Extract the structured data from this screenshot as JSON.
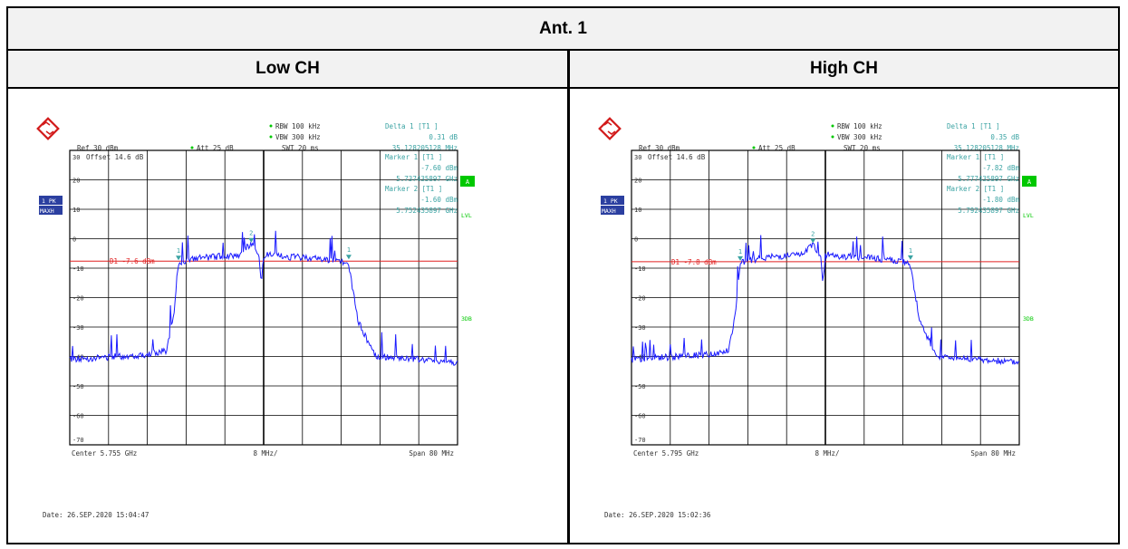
{
  "table": {
    "title": "Ant. 1",
    "columns": [
      "Low CH",
      "High CH"
    ]
  },
  "colors": {
    "trace": "#1a1aff",
    "grid": "#000000",
    "annotation": "#3aa3a3",
    "display_line": "#e02020",
    "badge": "#2b3fa0",
    "green": "#00c800"
  },
  "plots": [
    {
      "logo_icon": "rohde-schwarz-logo-icon",
      "ref": "Ref  30 dBm",
      "att": "Att  25 dB",
      "rbw": "RBW 100 kHz",
      "vbw": "VBW 300 kHz",
      "swt": "SWT 20 ms",
      "delta_label": "Delta 1 [T1 ]",
      "delta_value": "0.31 dB",
      "delta_freq": "35.128205128 MHz",
      "marker1_label": "Marker 1 [T1 ]",
      "marker1_value": "-7.60 dBm",
      "marker1_freq": "5.737435897 GHz",
      "marker2_label": "Marker 2 [T1 ]",
      "marker2_value": "-1.60 dBm",
      "marker2_freq": "5.752435897 GHz",
      "offset": "Offset  14.6 dB",
      "d1_label": "D1 -7.6 dBm",
      "side_a": "A",
      "side_lvl": "LVL",
      "side_3db": "3DB",
      "badge_1": "1 PK",
      "badge_2": "MAXH",
      "center": "Center  5.755 GHz",
      "per_div": "8 MHz/",
      "span": "Span  80 MHz",
      "date": "Date: 26.SEP.2020  15:04:47",
      "y_ticks": [
        "30",
        "20",
        "10",
        "0",
        "-10",
        "-20",
        "-30",
        "-40",
        "-50",
        "-60",
        "-70"
      ],
      "chart_data": {
        "type": "line",
        "xlabel": "",
        "ylabel": "",
        "x_unit": "GHz",
        "y_unit": "dBm",
        "xlim": [
          5.715,
          5.795
        ],
        "ylim": [
          -70,
          30
        ],
        "grid": true,
        "display_line": -7.6,
        "x": [
          5.715,
          5.73,
          5.735,
          5.7365,
          5.7374,
          5.742,
          5.75,
          5.7524,
          5.754,
          5.7545,
          5.755,
          5.7555,
          5.758,
          5.765,
          5.772,
          5.7725,
          5.7745,
          5.778,
          5.795
        ],
        "values": [
          -41,
          -39.5,
          -38,
          -25,
          -8,
          -6.5,
          -5.5,
          -1.6,
          -6,
          -15,
          -6,
          -5.5,
          -6,
          -6.5,
          -8,
          -9,
          -28,
          -40,
          -42
        ],
        "markers": [
          {
            "label": "1",
            "x": 5.737435897,
            "y": -7.6
          },
          {
            "label": "2",
            "x": 5.752435897,
            "y": -1.6
          },
          {
            "label": "1",
            "x": 5.77256,
            "y": -7.3
          }
        ]
      }
    },
    {
      "logo_icon": "rohde-schwarz-logo-icon",
      "ref": "Ref  30 dBm",
      "att": "Att  25 dB",
      "rbw": "RBW 100 kHz",
      "vbw": "VBW 300 kHz",
      "swt": "SWT 20 ms",
      "delta_label": "Delta 1 [T1 ]",
      "delta_value": "0.35 dB",
      "delta_freq": "35.128205128 MHz",
      "marker1_label": "Marker 1 [T1 ]",
      "marker1_value": "-7.82 dBm",
      "marker1_freq": "5.777435897 GHz",
      "marker2_label": "Marker 2 [T1 ]",
      "marker2_value": "-1.80 dBm",
      "marker2_freq": "5.792435897 GHz",
      "offset": "Offset  14.6 dB",
      "d1_label": "D1 -7.8 dBm",
      "side_a": "A",
      "side_lvl": "LVL",
      "side_3db": "3DB",
      "badge_1": "1 PK",
      "badge_2": "MAXH",
      "center": "Center  5.795 GHz",
      "per_div": "8 MHz/",
      "span": "Span  80 MHz",
      "date": "Date: 26.SEP.2020  15:02:36",
      "y_ticks": [
        "30",
        "20",
        "10",
        "0",
        "-10",
        "-20",
        "-30",
        "-40",
        "-50",
        "-60",
        "-70"
      ],
      "chart_data": {
        "type": "line",
        "xlabel": "",
        "ylabel": "",
        "x_unit": "GHz",
        "y_unit": "dBm",
        "xlim": [
          5.755,
          5.835
        ],
        "ylim": [
          -70,
          30
        ],
        "grid": true,
        "display_line": -7.8,
        "x": [
          5.755,
          5.77,
          5.775,
          5.7765,
          5.7774,
          5.782,
          5.79,
          5.7924,
          5.794,
          5.7945,
          5.795,
          5.7955,
          5.798,
          5.805,
          5.812,
          5.8125,
          5.8145,
          5.818,
          5.835
        ],
        "values": [
          -41,
          -39.5,
          -38,
          -25,
          -8,
          -6.5,
          -5.5,
          -1.8,
          -6,
          -15,
          -6,
          -5.5,
          -6,
          -6.5,
          -8,
          -9,
          -28,
          -40,
          -42
        ],
        "markers": [
          {
            "label": "1",
            "x": 5.777435897,
            "y": -7.82
          },
          {
            "label": "2",
            "x": 5.792435897,
            "y": -1.8
          },
          {
            "label": "1",
            "x": 5.81256,
            "y": -7.5
          }
        ]
      }
    }
  ]
}
